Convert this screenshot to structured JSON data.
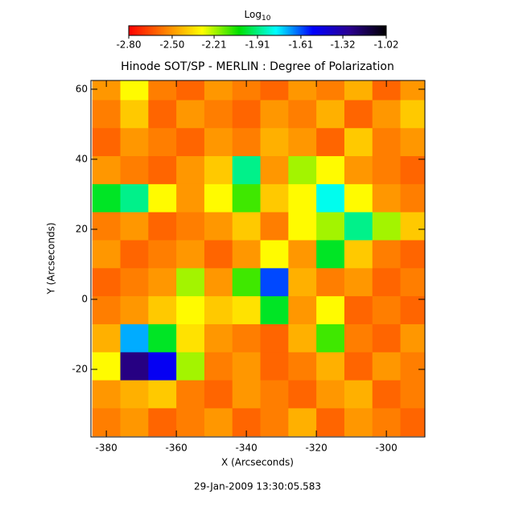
{
  "chart_data": {
    "type": "heatmap",
    "title": "Hinode SOT/SP - MERLIN : Degree of Polarization",
    "xlabel": "X (Arcseconds)",
    "ylabel": "Y (Arcseconds)",
    "footer": "29-Jan-2009 13:30:05.583",
    "colorbar_label": "Log",
    "colorbar_label_sub": "10",
    "zlim": [
      -2.8,
      -1.02
    ],
    "zticks": [
      {
        "value": -2.8,
        "label": "-2.80"
      },
      {
        "value": -2.5,
        "label": "-2.50"
      },
      {
        "value": -2.21,
        "label": "-2.21"
      },
      {
        "value": -1.91,
        "label": "-1.91"
      },
      {
        "value": -1.61,
        "label": "-1.61"
      },
      {
        "value": -1.32,
        "label": "-1.32"
      },
      {
        "value": -1.02,
        "label": "-1.02"
      }
    ],
    "colorscale": [
      "#ff0000",
      "#ff8000",
      "#ffff00",
      "#00e000",
      "#00ffff",
      "#0000ff",
      "#2a0090",
      "#000000"
    ],
    "xlim": [
      -384.4,
      -289
    ],
    "xticks": [
      -380,
      -360,
      -340,
      -320,
      -300
    ],
    "ylim": [
      -39.3,
      62.5
    ],
    "yticks": [
      -20,
      0,
      20,
      40,
      60
    ],
    "x": [
      -380,
      -372,
      -364,
      -356,
      -348,
      -340,
      -332,
      -324,
      -316,
      -308,
      -300,
      -292
    ],
    "y": [
      -35,
      -27,
      -19,
      -11,
      -3,
      5,
      13,
      21,
      29,
      37,
      45,
      53,
      61
    ],
    "z": [
      [
        -2.55,
        -2.5,
        -2.6,
        -2.55,
        -2.5,
        -2.6,
        -2.55,
        -2.45,
        -2.6,
        -2.5,
        -2.55,
        -2.6
      ],
      [
        -2.5,
        -2.45,
        -2.4,
        -2.55,
        -2.6,
        -2.5,
        -2.55,
        -2.6,
        -2.5,
        -2.45,
        -2.6,
        -2.55
      ],
      [
        -2.3,
        -1.25,
        -1.5,
        -2.2,
        -2.55,
        -2.5,
        -2.6,
        -2.55,
        -2.45,
        -2.6,
        -2.5,
        -2.55
      ],
      [
        -2.45,
        -1.7,
        -2.0,
        -2.35,
        -2.5,
        -2.55,
        -2.6,
        -2.45,
        -2.1,
        -2.55,
        -2.6,
        -2.5
      ],
      [
        -2.55,
        -2.5,
        -2.4,
        -2.3,
        -2.4,
        -2.35,
        -2.0,
        -2.5,
        -2.3,
        -2.6,
        -2.55,
        -2.6
      ],
      [
        -2.6,
        -2.55,
        -2.5,
        -2.2,
        -2.5,
        -2.1,
        -1.6,
        -2.45,
        -2.55,
        -2.5,
        -2.6,
        -2.55
      ],
      [
        -2.5,
        -2.6,
        -2.55,
        -2.5,
        -2.6,
        -2.5,
        -2.3,
        -2.5,
        -2.0,
        -2.4,
        -2.55,
        -2.6
      ],
      [
        -2.55,
        -2.5,
        -2.6,
        -2.55,
        -2.5,
        -2.4,
        -2.55,
        -2.3,
        -2.2,
        -1.9,
        -2.2,
        -2.4
      ],
      [
        -2.0,
        -1.9,
        -2.3,
        -2.5,
        -2.3,
        -2.1,
        -2.4,
        -2.3,
        -1.8,
        -2.3,
        -2.5,
        -2.55
      ],
      [
        -2.5,
        -2.55,
        -2.6,
        -2.5,
        -2.4,
        -1.9,
        -2.5,
        -2.2,
        -2.3,
        -2.5,
        -2.55,
        -2.6
      ],
      [
        -2.6,
        -2.5,
        -2.55,
        -2.6,
        -2.5,
        -2.55,
        -2.45,
        -2.5,
        -2.6,
        -2.4,
        -2.55,
        -2.5
      ],
      [
        -2.55,
        -2.4,
        -2.6,
        -2.5,
        -2.55,
        -2.6,
        -2.5,
        -2.55,
        -2.45,
        -2.6,
        -2.5,
        -2.4
      ],
      [
        -2.5,
        -2.3,
        -2.55,
        -2.6,
        -2.5,
        -2.55,
        -2.6,
        -2.5,
        -2.55,
        -2.45,
        -2.6,
        -2.5
      ]
    ]
  }
}
